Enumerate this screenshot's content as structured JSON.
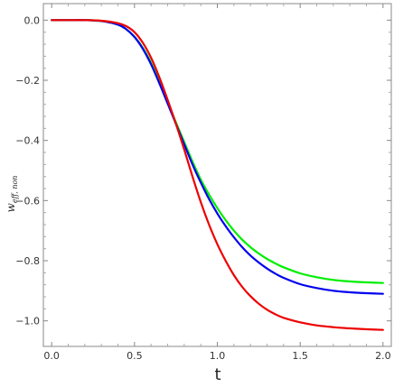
{
  "chart_data": {
    "type": "line",
    "xlabel": "t",
    "ylabel": {
      "main": "w",
      "subscript": "eff, non"
    },
    "xlim": [
      -0.05,
      2.05
    ],
    "ylim": [
      -1.085,
      0.055
    ],
    "xticks": [
      0.0,
      0.5,
      1.0,
      1.5,
      2.0
    ],
    "xtick_labels": [
      "0.0",
      "0.5",
      "1.0",
      "1.5",
      "2.0"
    ],
    "yticks": [
      0.0,
      -0.2,
      -0.4,
      -0.6,
      -0.8,
      -1.0
    ],
    "ytick_labels": [
      "0.0",
      "−0.2",
      "−0.4",
      "−0.6",
      "−0.8",
      "−1.0"
    ],
    "grid": false,
    "frame": true,
    "series": [
      {
        "color": "#00ee00",
        "x": [
          0.0,
          0.1,
          0.2,
          0.3,
          0.4,
          0.45,
          0.5,
          0.55,
          0.6,
          0.65,
          0.7,
          0.75,
          0.8,
          0.85,
          0.9,
          0.95,
          1.0,
          1.05,
          1.1,
          1.15,
          1.2,
          1.25,
          1.3,
          1.35,
          1.4,
          1.5,
          1.6,
          1.7,
          1.8,
          1.9,
          2.0
        ],
        "y": [
          0.0,
          0.0,
          0.0,
          -0.003,
          -0.015,
          -0.03,
          -0.055,
          -0.092,
          -0.142,
          -0.205,
          -0.272,
          -0.34,
          -0.405,
          -0.47,
          -0.53,
          -0.58,
          -0.625,
          -0.665,
          -0.7,
          -0.73,
          -0.755,
          -0.776,
          -0.794,
          -0.809,
          -0.822,
          -0.842,
          -0.855,
          -0.864,
          -0.869,
          -0.872,
          -0.874
        ]
      },
      {
        "color": "#0000ee",
        "x": [
          0.0,
          0.1,
          0.2,
          0.3,
          0.4,
          0.45,
          0.5,
          0.55,
          0.6,
          0.65,
          0.7,
          0.75,
          0.8,
          0.85,
          0.9,
          0.95,
          1.0,
          1.05,
          1.1,
          1.15,
          1.2,
          1.25,
          1.3,
          1.35,
          1.4,
          1.5,
          1.6,
          1.7,
          1.8,
          1.9,
          2.0
        ],
        "y": [
          0.0,
          0.0,
          0.0,
          -0.003,
          -0.015,
          -0.03,
          -0.056,
          -0.095,
          -0.147,
          -0.21,
          -0.277,
          -0.345,
          -0.413,
          -0.48,
          -0.54,
          -0.595,
          -0.643,
          -0.685,
          -0.722,
          -0.755,
          -0.783,
          -0.806,
          -0.826,
          -0.843,
          -0.857,
          -0.878,
          -0.891,
          -0.9,
          -0.905,
          -0.908,
          -0.91
        ]
      },
      {
        "color": "#ee0000",
        "x": [
          0.0,
          0.1,
          0.2,
          0.3,
          0.4,
          0.45,
          0.5,
          0.55,
          0.6,
          0.65,
          0.7,
          0.75,
          0.8,
          0.85,
          0.9,
          0.95,
          1.0,
          1.05,
          1.1,
          1.15,
          1.2,
          1.25,
          1.3,
          1.35,
          1.4,
          1.5,
          1.6,
          1.7,
          1.8,
          1.9,
          2.0
        ],
        "y": [
          0.0,
          0.0,
          0.0,
          -0.002,
          -0.01,
          -0.02,
          -0.04,
          -0.075,
          -0.125,
          -0.19,
          -0.265,
          -0.345,
          -0.43,
          -0.52,
          -0.605,
          -0.68,
          -0.745,
          -0.8,
          -0.848,
          -0.887,
          -0.918,
          -0.943,
          -0.963,
          -0.978,
          -0.99,
          -1.005,
          -1.015,
          -1.021,
          -1.025,
          -1.028,
          -1.03
        ]
      }
    ]
  }
}
